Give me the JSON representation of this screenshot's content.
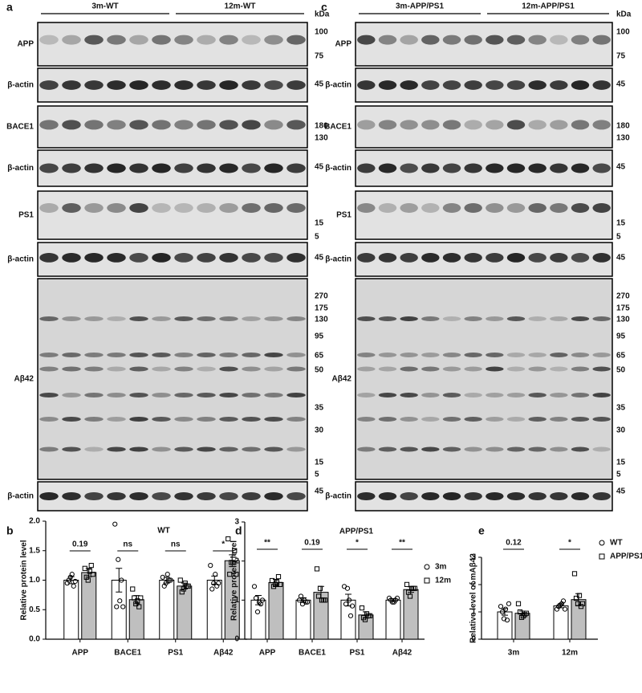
{
  "blots": [
    {
      "letter": "a",
      "groups": [
        "3m-WT",
        "12m-WT"
      ],
      "unit": "kDa",
      "rows": [
        {
          "label": "APP",
          "markers": [
            "100",
            "75"
          ]
        },
        {
          "label": "β-actin",
          "markers": [
            "45"
          ]
        },
        {
          "label": "BACE1",
          "markers": [
            "180",
            "130"
          ]
        },
        {
          "label": "β-actin",
          "markers": [
            "45"
          ]
        },
        {
          "label": "PS1",
          "markers": [
            "15",
            "5"
          ]
        },
        {
          "label": "β-actin",
          "markers": [
            "45"
          ]
        },
        {
          "label": "Aβ42",
          "markers": [
            "270",
            "175",
            "130",
            "95",
            "65",
            "50",
            "35",
            "30",
            "15",
            "5"
          ]
        },
        {
          "label": "β-actin",
          "markers": [
            "45"
          ]
        }
      ]
    },
    {
      "letter": "c",
      "groups": [
        "3m-APP/PS1",
        "12m-APP/PS1"
      ],
      "unit": "kDa",
      "rows": [
        {
          "label": "APP",
          "markers": [
            "100",
            "75"
          ]
        },
        {
          "label": "β-actin",
          "markers": [
            "45"
          ]
        },
        {
          "label": "BACE1",
          "markers": [
            "180",
            "130"
          ]
        },
        {
          "label": "β-actin",
          "markers": [
            "45"
          ]
        },
        {
          "label": "PS1",
          "markers": [
            "15",
            "5"
          ]
        },
        {
          "label": "β-actin",
          "markers": [
            "45"
          ]
        },
        {
          "label": "Aβ42",
          "markers": [
            "270",
            "175",
            "130",
            "95",
            "65",
            "50",
            "35",
            "30",
            "15",
            "5"
          ]
        },
        {
          "label": "β-actin",
          "markers": [
            "45"
          ]
        }
      ]
    }
  ],
  "chart_data": [
    {
      "type": "bar",
      "letter": "b",
      "title": "WT",
      "ylabel": "Relative protein level",
      "categories": [
        "APP",
        "BACE1",
        "PS1",
        "Aβ42"
      ],
      "ylim": [
        0,
        2
      ],
      "yticks": [
        {
          "value": 0,
          "label": "0.0"
        },
        0.5,
        {
          "value": 1,
          "label": "1.0"
        },
        1.5,
        {
          "value": 2,
          "label": "2.0"
        }
      ],
      "annotations": [
        "0.19",
        "ns",
        "ns",
        "*"
      ],
      "series": [
        {
          "name": "3m",
          "color": "#ffffff",
          "marker": "circle",
          "values": [
            1.0,
            1.0,
            1.0,
            1.0
          ],
          "errors": [
            0.06,
            0.2,
            0.05,
            0.07
          ],
          "points": [
            [
              0.95,
              1.05,
              0.9,
              1.0,
              1.1,
              0.98
            ],
            [
              1.95,
              1.35,
              1.0,
              0.55,
              0.65,
              0.55
            ],
            [
              1.05,
              0.95,
              1.0,
              0.9,
              1.1,
              1.0
            ],
            [
              1.25,
              0.95,
              0.9,
              0.85,
              1.1,
              0.95
            ]
          ]
        },
        {
          "name": "12m",
          "color": "#bfbfbf",
          "marker": "square",
          "values": [
            1.13,
            0.67,
            0.9,
            1.33
          ],
          "errors": [
            0.07,
            0.07,
            0.05,
            0.1
          ],
          "points": [
            [
              1.2,
              1.0,
              1.25,
              1.05,
              1.15,
              1.1
            ],
            [
              0.85,
              0.6,
              0.55,
              0.7,
              0.65,
              0.7
            ],
            [
              1.0,
              0.85,
              0.9,
              0.8,
              0.95,
              0.9
            ],
            [
              1.7,
              1.3,
              1.5,
              1.1,
              1.3,
              1.1
            ]
          ]
        }
      ]
    },
    {
      "type": "bar",
      "letter": "d",
      "title": "APP/PS1",
      "ylabel": "Relative protein level",
      "categories": [
        "APP",
        "BACE1",
        "PS1",
        "Aβ42"
      ],
      "ylim": [
        0,
        3
      ],
      "yticks": [
        0,
        1,
        2,
        3
      ],
      "annotations": [
        "**",
        "0.19",
        "*",
        "**"
      ],
      "legend": true,
      "series": [
        {
          "name": "3m",
          "color": "#ffffff",
          "marker": "circle",
          "values": [
            1.0,
            1.0,
            1.0,
            1.0
          ],
          "errors": [
            0.12,
            0.06,
            0.15,
            0.04
          ],
          "points": [
            [
              1.35,
              0.7,
              0.9,
              1.05,
              0.95,
              1.0
            ],
            [
              1.0,
              0.9,
              0.95,
              1.1,
              1.0,
              0.95
            ],
            [
              1.35,
              1.3,
              0.6,
              0.9,
              1.0,
              0.85
            ],
            [
              1.05,
              0.95,
              1.0,
              1.0,
              0.95,
              1.05
            ]
          ]
        },
        {
          "name": "12m",
          "color": "#bfbfbf",
          "marker": "square",
          "values": [
            1.45,
            1.2,
            0.62,
            1.27
          ],
          "errors": [
            0.08,
            0.15,
            0.08,
            0.07
          ],
          "points": [
            [
              1.5,
              1.4,
              1.6,
              1.35,
              1.45,
              1.4
            ],
            [
              1.8,
              1.3,
              1.0,
              1.1,
              1.0,
              1.0
            ],
            [
              0.8,
              0.5,
              0.6,
              0.55,
              0.65,
              0.6
            ],
            [
              1.4,
              1.1,
              1.3,
              1.2,
              1.3,
              1.3
            ]
          ]
        }
      ]
    },
    {
      "type": "bar",
      "letter": "e",
      "ylabel": "Relative level of mAβ42",
      "categories": [
        "3m",
        "12m"
      ],
      "ylim": [
        0,
        3
      ],
      "yticks": [
        0,
        1,
        2,
        3
      ],
      "annotations": [
        "0.12",
        "*"
      ],
      "legend": true,
      "series": [
        {
          "name": "WT",
          "color": "#ffffff",
          "marker": "circle",
          "values": [
            1.0,
            1.22
          ],
          "errors": [
            0.12,
            0.07
          ],
          "points": [
            [
              1.2,
              0.75,
              0.7,
              1.0,
              1.1,
              1.3
            ],
            [
              1.1,
              1.25,
              1.4,
              1.2,
              1.3,
              1.1
            ]
          ]
        },
        {
          "name": "APP/PS1",
          "color": "#bfbfbf",
          "marker": "square",
          "values": [
            0.95,
            1.45
          ],
          "errors": [
            0.08,
            0.22
          ],
          "points": [
            [
              1.3,
              0.8,
              0.9,
              1.0,
              0.85,
              0.95
            ],
            [
              2.4,
              1.3,
              1.2,
              1.5,
              1.6,
              1.3
            ]
          ]
        }
      ]
    }
  ]
}
